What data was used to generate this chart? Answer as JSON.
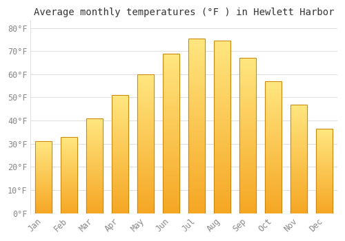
{
  "title": "Average monthly temperatures (°F ) in Hewlett Harbor",
  "months": [
    "Jan",
    "Feb",
    "Mar",
    "Apr",
    "May",
    "Jun",
    "Jul",
    "Aug",
    "Sep",
    "Oct",
    "Nov",
    "Dec"
  ],
  "values": [
    31,
    33,
    41,
    51,
    60,
    69,
    75.5,
    74.5,
    67,
    57,
    47,
    36.5
  ],
  "bar_color_bottom": "#F5A623",
  "bar_color_top": "#FFE680",
  "bar_edge_color": "#C8860A",
  "background_color": "#FFFFFF",
  "grid_color": "#DDDDDD",
  "ylim": [
    0,
    83
  ],
  "yticks": [
    0,
    10,
    20,
    30,
    40,
    50,
    60,
    70,
    80
  ],
  "ytick_labels": [
    "0°F",
    "10°F",
    "20°F",
    "30°F",
    "40°F",
    "50°F",
    "60°F",
    "70°F",
    "80°F"
  ],
  "title_fontsize": 10,
  "tick_fontsize": 8.5,
  "title_color": "#333333",
  "tick_color": "#888888",
  "font_family": "monospace",
  "bar_width": 0.65
}
